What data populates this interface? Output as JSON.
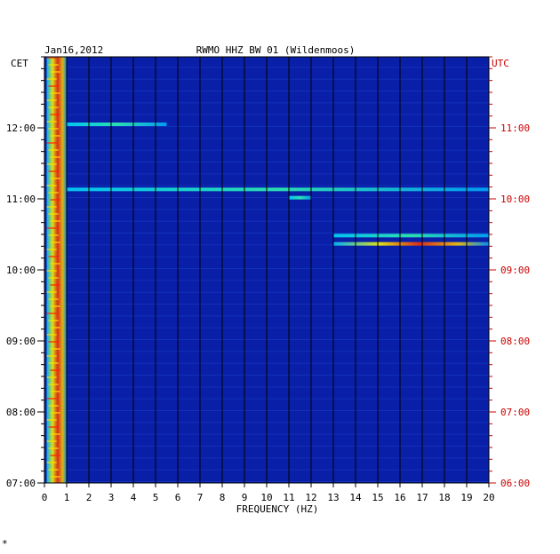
{
  "chart_data": {
    "type": "heatmap",
    "date": "Jan16,2012",
    "title": "RWMO HHZ BW 01 (Wildenmoos)",
    "left_axis_label": "CET",
    "right_axis_label": "UTC",
    "xlabel": "FREQUENCY (HZ)",
    "xlim": [
      0,
      20
    ],
    "x_ticks": [
      "0",
      "1",
      "2",
      "3",
      "4",
      "5",
      "6",
      "7",
      "8",
      "9",
      "10",
      "11",
      "12",
      "13",
      "14",
      "15",
      "16",
      "17",
      "18",
      "19",
      "20"
    ],
    "cet_time_range": [
      "07:00",
      "13:00"
    ],
    "cet_ticks": [
      "07:00",
      "08:00",
      "09:00",
      "10:00",
      "11:00",
      "12:00"
    ],
    "utc_ticks": [
      "06:00",
      "07:00",
      "08:00",
      "09:00",
      "10:00",
      "11:00"
    ],
    "colors": {
      "background": "#0a1fa8",
      "low_energy": "#0000c8",
      "high_energy": "#ff2000",
      "left_labels": "#000000",
      "right_labels": "#cc0000"
    },
    "energy_features": [
      {
        "description": "strong low-frequency band",
        "freq_hz": [
          0.1,
          1.0
        ],
        "time_cet": [
          "07:00",
          "13:00"
        ],
        "level": "high"
      },
      {
        "time_cet": "12:03",
        "freq_hz": [
          1.0,
          5.5
        ],
        "level": "medium"
      },
      {
        "time_cet": "11:08",
        "freq_hz": [
          1.0,
          20.0
        ],
        "level": "medium"
      },
      {
        "time_cet": "11:01",
        "freq_hz": [
          11.0,
          12.0
        ],
        "level": "medium"
      },
      {
        "time_cet": "10:29",
        "freq_hz": [
          13.0,
          20.0
        ],
        "level": "medium"
      },
      {
        "time_cet": "10:22",
        "freq_hz": [
          13.0,
          20.0
        ],
        "level": "high"
      }
    ]
  },
  "footer_mark": "*"
}
